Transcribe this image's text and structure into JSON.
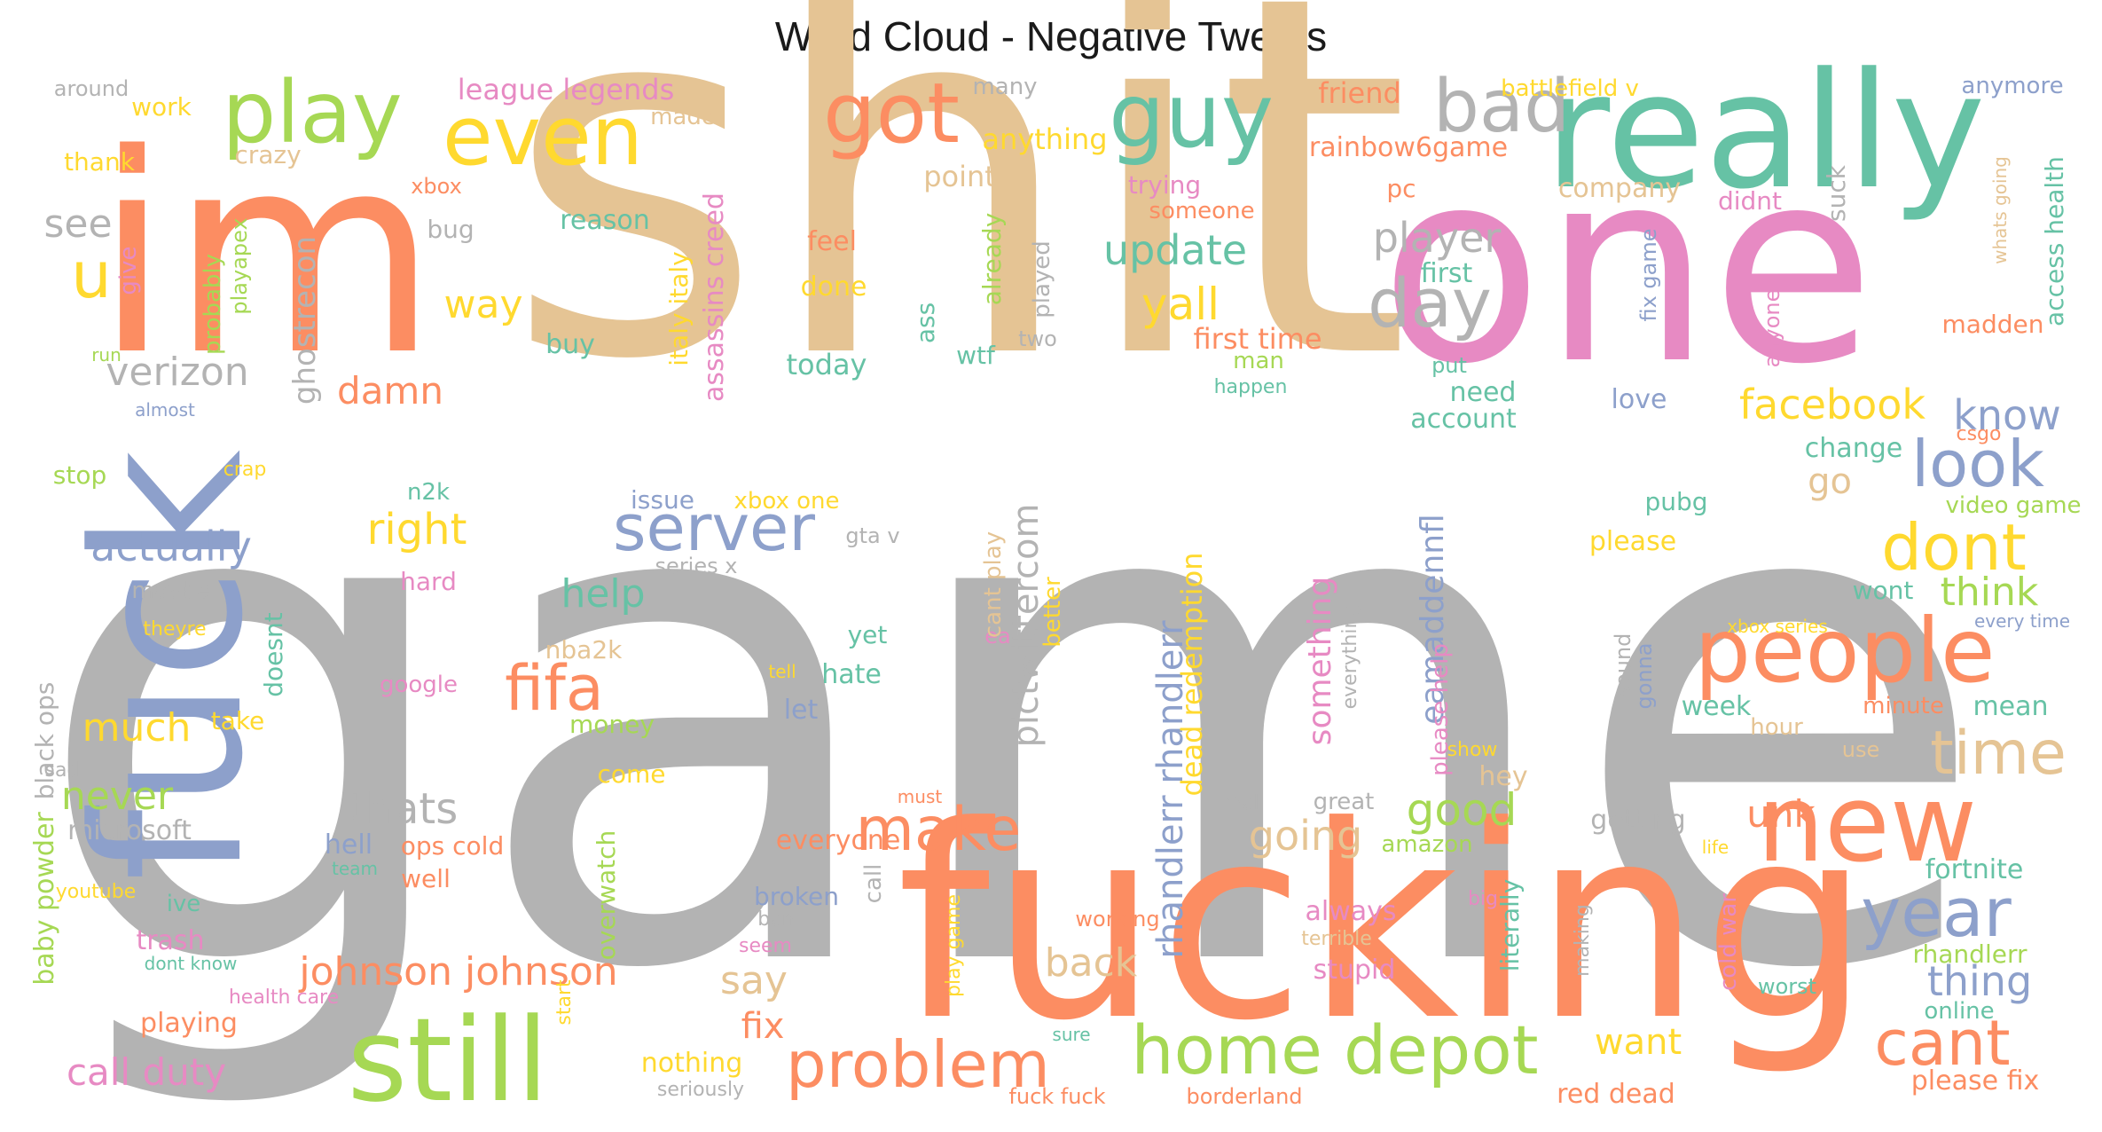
{
  "title": "Word Cloud - Negative Tweets",
  "palette": {
    "gray": "#b3b3b3",
    "tan": "#e5c494",
    "orange": "#fc8d62",
    "green": "#66c2a5",
    "blue": "#8da0cb",
    "pink": "#e78ac3",
    "lime": "#a6d854",
    "yellow": "#ffd92f"
  },
  "words": [
    {
      "t": "game",
      "c": "gray"
    },
    {
      "t": "shit",
      "c": "tan"
    },
    {
      "t": "fucking",
      "c": "orange"
    },
    {
      "t": "im",
      "c": "orange"
    },
    {
      "t": "one",
      "c": "pink"
    },
    {
      "t": "fuck",
      "c": "blue"
    },
    {
      "t": "really",
      "c": "green"
    },
    {
      "t": "still",
      "c": "lime"
    },
    {
      "t": "new",
      "c": "orange"
    },
    {
      "t": "people",
      "c": "orange"
    },
    {
      "t": "play",
      "c": "lime"
    },
    {
      "t": "even",
      "c": "yellow"
    },
    {
      "t": "got",
      "c": "orange"
    },
    {
      "t": "guy",
      "c": "green"
    },
    {
      "t": "bad",
      "c": "gray"
    },
    {
      "t": "home depot",
      "c": "lime"
    },
    {
      "t": "problem",
      "c": "orange"
    },
    {
      "t": "year",
      "c": "blue"
    },
    {
      "t": "cant",
      "c": "orange"
    },
    {
      "t": "time",
      "c": "tan"
    },
    {
      "t": "look",
      "c": "blue"
    },
    {
      "t": "dont",
      "c": "yellow"
    },
    {
      "t": "day",
      "c": "gray"
    },
    {
      "t": "server",
      "c": "blue"
    },
    {
      "t": "fifa",
      "c": "orange"
    },
    {
      "t": "make",
      "c": "orange"
    },
    {
      "t": "u",
      "c": "yellow"
    },
    {
      "t": "update",
      "c": "green"
    },
    {
      "t": "player",
      "c": "gray"
    },
    {
      "t": "facebook",
      "c": "yellow"
    },
    {
      "t": "johnson johnson",
      "c": "orange"
    },
    {
      "t": "call duty",
      "c": "pink"
    },
    {
      "t": "actually",
      "c": "blue"
    },
    {
      "t": "verizon",
      "c": "gray"
    },
    {
      "t": "right",
      "c": "yellow"
    },
    {
      "t": "yall",
      "c": "yellow"
    },
    {
      "t": "way",
      "c": "yellow"
    },
    {
      "t": "damn",
      "c": "orange"
    },
    {
      "t": "see",
      "c": "gray"
    },
    {
      "t": "thats",
      "c": "gray"
    },
    {
      "t": "going",
      "c": "tan"
    },
    {
      "t": "good",
      "c": "lime"
    },
    {
      "t": "know",
      "c": "blue"
    },
    {
      "t": "think",
      "c": "lime"
    },
    {
      "t": "much",
      "c": "yellow"
    },
    {
      "t": "never",
      "c": "lime"
    },
    {
      "t": "help",
      "c": "green"
    },
    {
      "t": "back",
      "c": "tan"
    },
    {
      "t": "say",
      "c": "tan"
    },
    {
      "t": "fix",
      "c": "orange"
    },
    {
      "t": "want",
      "c": "yellow"
    },
    {
      "t": "thing",
      "c": "blue"
    },
    {
      "t": "unk",
      "c": "orange"
    },
    {
      "t": "go",
      "c": "tan"
    },
    {
      "t": "pictwittercom",
      "c": "gray"
    },
    {
      "t": "rhandlerr rhandlerr",
      "c": "blue"
    },
    {
      "t": "dead redemption",
      "c": "yellow"
    },
    {
      "t": "eamaddennfl",
      "c": "blue"
    },
    {
      "t": "something",
      "c": "pink"
    },
    {
      "t": "league legends",
      "c": "pink"
    },
    {
      "t": "work",
      "c": "yellow"
    },
    {
      "t": "thank",
      "c": "yellow"
    },
    {
      "t": "around",
      "c": "gray"
    },
    {
      "t": "made",
      "c": "tan"
    },
    {
      "t": "crazy",
      "c": "tan"
    },
    {
      "t": "many",
      "c": "gray"
    },
    {
      "t": "anything",
      "c": "yellow"
    },
    {
      "t": "friend",
      "c": "orange"
    },
    {
      "t": "battlefield v",
      "c": "yellow"
    },
    {
      "t": "anymore",
      "c": "blue"
    },
    {
      "t": "rainbow6game",
      "c": "orange"
    },
    {
      "t": "company",
      "c": "tan"
    },
    {
      "t": "didnt",
      "c": "pink"
    },
    {
      "t": "point",
      "c": "tan"
    },
    {
      "t": "trying",
      "c": "pink"
    },
    {
      "t": "someone",
      "c": "orange"
    },
    {
      "t": "pc",
      "c": "orange"
    },
    {
      "t": "xbox",
      "c": "orange"
    },
    {
      "t": "bug",
      "c": "gray"
    },
    {
      "t": "reason",
      "c": "green"
    },
    {
      "t": "feel",
      "c": "orange"
    },
    {
      "t": "done",
      "c": "yellow"
    },
    {
      "t": "first",
      "c": "green"
    },
    {
      "t": "first time",
      "c": "orange"
    },
    {
      "t": "buy",
      "c": "green"
    },
    {
      "t": "today",
      "c": "green"
    },
    {
      "t": "wtf",
      "c": "green"
    },
    {
      "t": "two",
      "c": "gray"
    },
    {
      "t": "man",
      "c": "lime"
    },
    {
      "t": "happen",
      "c": "green"
    },
    {
      "t": "need",
      "c": "green"
    },
    {
      "t": "account",
      "c": "green"
    },
    {
      "t": "love",
      "c": "blue"
    },
    {
      "t": "put",
      "c": "green"
    },
    {
      "t": "change",
      "c": "green"
    },
    {
      "t": "csgo",
      "c": "orange"
    },
    {
      "t": "madden",
      "c": "orange"
    },
    {
      "t": "video game",
      "c": "lime"
    },
    {
      "t": "wont",
      "c": "green"
    },
    {
      "t": "every time",
      "c": "blue"
    },
    {
      "t": "please",
      "c": "yellow"
    },
    {
      "t": "pubg",
      "c": "green"
    },
    {
      "t": "issue",
      "c": "blue"
    },
    {
      "t": "xbox one",
      "c": "yellow"
    },
    {
      "t": "gta v",
      "c": "gray"
    },
    {
      "t": "series x",
      "c": "gray"
    },
    {
      "t": "n2k",
      "c": "green"
    },
    {
      "t": "hard",
      "c": "pink"
    },
    {
      "t": "maybe",
      "c": "gray"
    },
    {
      "t": "theyre",
      "c": "yellow"
    },
    {
      "t": "stop",
      "c": "lime"
    },
    {
      "t": "crap",
      "c": "yellow"
    },
    {
      "t": "almost",
      "c": "blue"
    },
    {
      "t": "run",
      "c": "lime"
    },
    {
      "t": "doesnt",
      "c": "green"
    },
    {
      "t": "nba2k",
      "c": "tan"
    },
    {
      "t": "google",
      "c": "pink"
    },
    {
      "t": "take",
      "c": "yellow"
    },
    {
      "t": "money",
      "c": "lime"
    },
    {
      "t": "come",
      "c": "yellow"
    },
    {
      "t": "yet",
      "c": "green"
    },
    {
      "t": "tell",
      "c": "yellow"
    },
    {
      "t": "hate",
      "c": "green"
    },
    {
      "t": "let",
      "c": "blue"
    },
    {
      "t": "ea",
      "c": "pink"
    },
    {
      "t": "better",
      "c": "yellow"
    },
    {
      "t": "microsoft",
      "c": "gray"
    },
    {
      "t": "hell",
      "c": "blue"
    },
    {
      "t": "ops cold",
      "c": "orange"
    },
    {
      "t": "team",
      "c": "green"
    },
    {
      "t": "well",
      "c": "orange"
    },
    {
      "t": "youtube",
      "c": "yellow"
    },
    {
      "t": "ive",
      "c": "green"
    },
    {
      "t": "sad",
      "c": "gray"
    },
    {
      "t": "trash",
      "c": "pink"
    },
    {
      "t": "dont know",
      "c": "green"
    },
    {
      "t": "health care",
      "c": "pink"
    },
    {
      "t": "playing",
      "c": "orange"
    },
    {
      "t": "everyone",
      "c": "orange"
    },
    {
      "t": "must",
      "c": "orange"
    },
    {
      "t": "broken",
      "c": "blue"
    },
    {
      "t": "ban",
      "c": "gray"
    },
    {
      "t": "seem",
      "c": "pink"
    },
    {
      "t": "nothing",
      "c": "yellow"
    },
    {
      "t": "seriously",
      "c": "gray"
    },
    {
      "t": "fuck fuck",
      "c": "orange"
    },
    {
      "t": "borderland",
      "c": "orange"
    },
    {
      "t": "sure",
      "c": "green"
    },
    {
      "t": "working",
      "c": "orange"
    },
    {
      "t": "terrible",
      "c": "tan"
    },
    {
      "t": "always",
      "c": "pink"
    },
    {
      "t": "stupid",
      "c": "pink"
    },
    {
      "t": "real",
      "c": "gray"
    },
    {
      "t": "great",
      "c": "gray"
    },
    {
      "t": "amazon",
      "c": "lime"
    },
    {
      "t": "big",
      "c": "pink"
    },
    {
      "t": "getting",
      "c": "gray"
    },
    {
      "t": "life",
      "c": "yellow"
    },
    {
      "t": "red dead",
      "c": "orange"
    },
    {
      "t": "making",
      "c": "gray"
    },
    {
      "t": "literally",
      "c": "green"
    },
    {
      "t": "cold war",
      "c": "pink"
    },
    {
      "t": "worst",
      "c": "green"
    },
    {
      "t": "online",
      "c": "green"
    },
    {
      "t": "fortnite",
      "c": "green"
    },
    {
      "t": "rhandlerr",
      "c": "lime"
    },
    {
      "t": "please fix",
      "c": "orange"
    },
    {
      "t": "week",
      "c": "green"
    },
    {
      "t": "minute",
      "c": "orange"
    },
    {
      "t": "mean",
      "c": "green"
    },
    {
      "t": "hour",
      "c": "tan"
    },
    {
      "t": "use",
      "c": "tan"
    },
    {
      "t": "hey",
      "c": "tan"
    },
    {
      "t": "show",
      "c": "yellow"
    },
    {
      "t": "xbox series",
      "c": "yellow"
    },
    {
      "t": "sound",
      "c": "gray"
    },
    {
      "t": "gonna",
      "c": "blue"
    },
    {
      "t": "please help",
      "c": "pink"
    },
    {
      "t": "everything",
      "c": "gray"
    },
    {
      "t": "overwatch",
      "c": "lime"
    },
    {
      "t": "start",
      "c": "yellow"
    },
    {
      "t": "call",
      "c": "gray"
    },
    {
      "t": "play game",
      "c": "yellow"
    },
    {
      "t": "cant play",
      "c": "tan"
    },
    {
      "t": "italy italy",
      "c": "yellow"
    },
    {
      "t": "assassins creed",
      "c": "pink"
    },
    {
      "t": "ghostrecon",
      "c": "gray"
    },
    {
      "t": "playapex",
      "c": "lime"
    },
    {
      "t": "probably",
      "c": "lime"
    },
    {
      "t": "give",
      "c": "pink"
    },
    {
      "t": "black ops",
      "c": "gray"
    },
    {
      "t": "baby powder",
      "c": "lime"
    },
    {
      "t": "ass",
      "c": "green"
    },
    {
      "t": "already",
      "c": "lime"
    },
    {
      "t": "played",
      "c": "gray"
    },
    {
      "t": "fix game",
      "c": "blue"
    },
    {
      "t": "suck",
      "c": "gray"
    },
    {
      "t": "anyone",
      "c": "pink"
    },
    {
      "t": "whats going",
      "c": "tan"
    },
    {
      "t": "access health",
      "c": "green"
    }
  ]
}
